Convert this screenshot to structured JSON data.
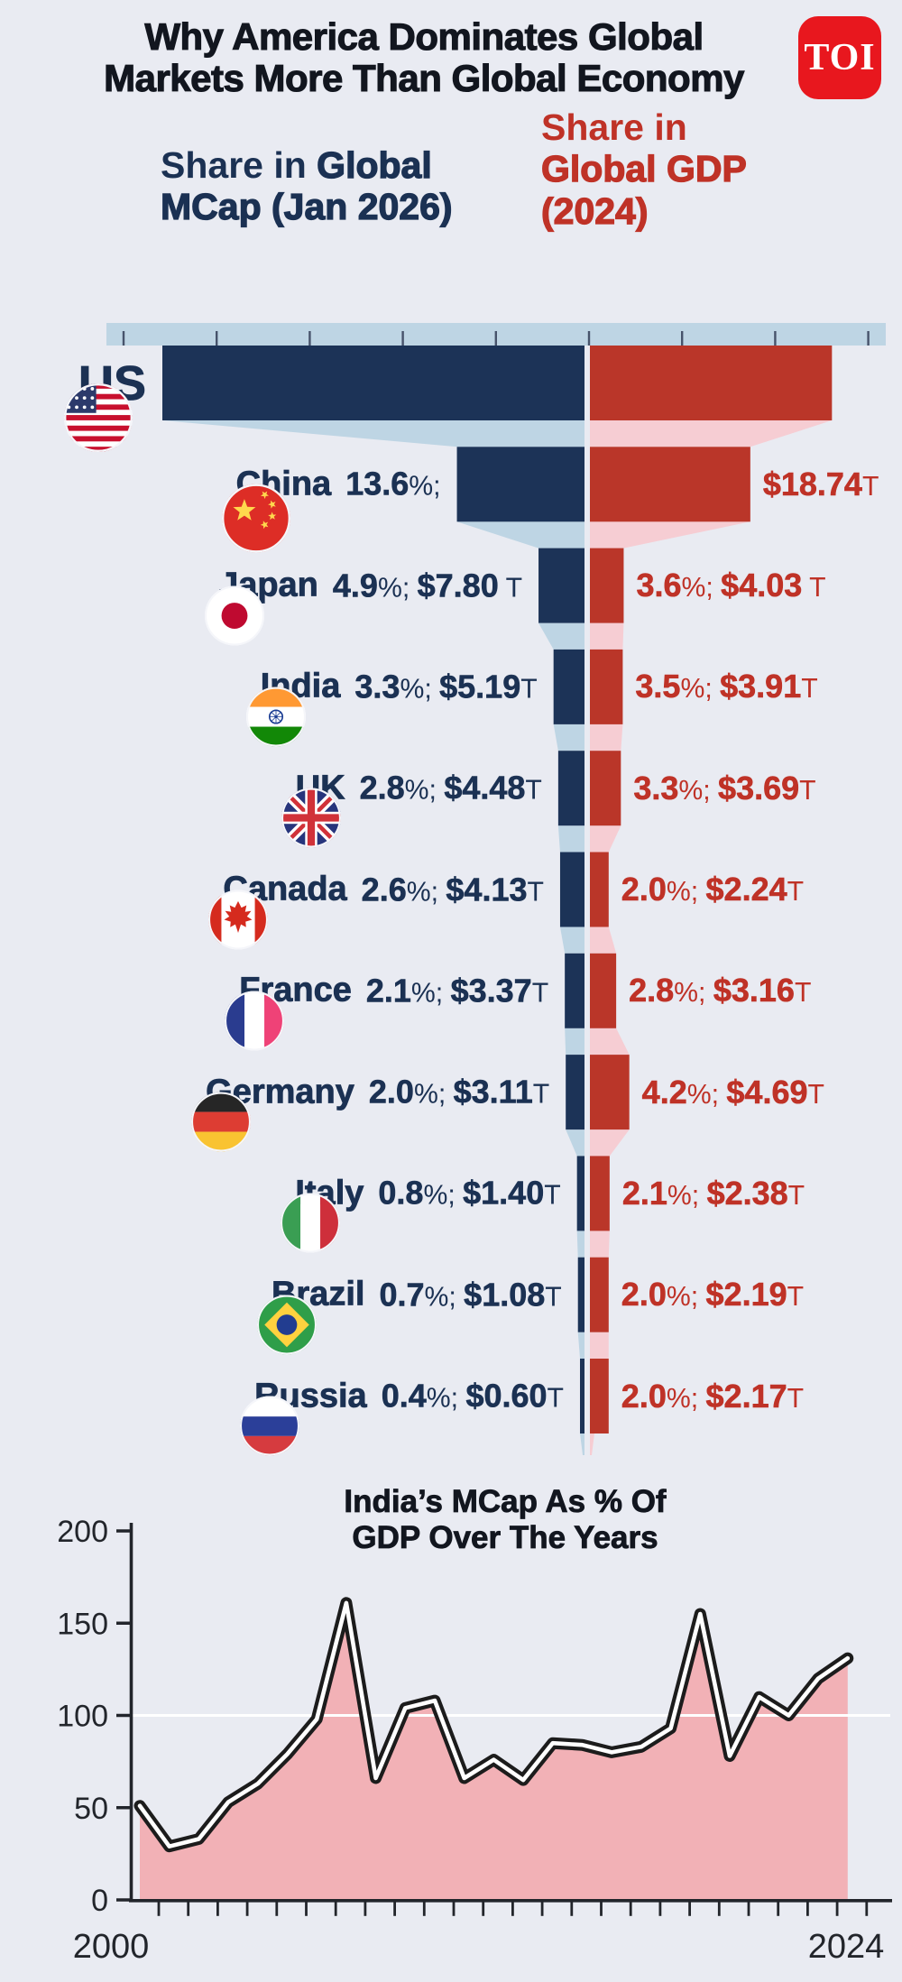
{
  "title": {
    "line1": "Why America Dominates Global",
    "line2": "Markets More Than Global Economy"
  },
  "logo": {
    "text": "TOI"
  },
  "col_headers": {
    "mcap": {
      "prefix": "Share in ",
      "bold": "Global",
      "line2": "MCap (Jan 2026)"
    },
    "gdp": {
      "line1": "Share in",
      "line2": "Global GDP",
      "line3": "(2024)"
    }
  },
  "colors": {
    "page_bg": "#e9ebf2",
    "title_dark": "#12161f",
    "logo_red": "#e8171e",
    "navy_bar": "#1c3357",
    "red_bar": "#ba3629",
    "light_blue": "#bed5e4",
    "light_pink": "#f6cdd3",
    "text_navy": "#1b3153",
    "text_red": "#bf3227",
    "area_pink": "#f2b1b6",
    "line_black": "#1c1c1c",
    "line_white": "#ffffff",
    "axis_dark": "#22252b",
    "ruler_tick": "#47536b",
    "gridline_white": "#ffffff"
  },
  "chart_data": [
    {
      "type": "bar",
      "subtype": "mirrored-funnel-comparison",
      "title": "Share in Global MCap (Jan 2026) vs Share in Global GDP (2024)",
      "unit": "% of world total; $ trillion",
      "rows": [
        {
          "country": "US",
          "flag": "us",
          "mcap_text": "",
          "gdp_text": "",
          "mcap_bar_pct": 45.0,
          "gdp_bar_pct": 25.8
        },
        {
          "country": "China",
          "flag": "cn",
          "mcap_text": "13.6%;",
          "gdp_text": "$18.74T",
          "mcap_bar_pct": 13.6,
          "gdp_bar_pct": 17.1
        },
        {
          "country": "Japan",
          "flag": "jp",
          "mcap_text": "4.9%; $7.80 T",
          "gdp_text": "3.6%; $4.03 T",
          "mcap_bar_pct": 4.9,
          "gdp_bar_pct": 3.6
        },
        {
          "country": "India",
          "flag": "in",
          "mcap_text": "3.3%; $5.19T",
          "gdp_text": "3.5%; $3.91T",
          "mcap_bar_pct": 3.3,
          "gdp_bar_pct": 3.5
        },
        {
          "country": "UK",
          "flag": "gb",
          "mcap_text": "2.8%; $4.48T",
          "gdp_text": "3.3%; $3.69T",
          "mcap_bar_pct": 2.8,
          "gdp_bar_pct": 3.3
        },
        {
          "country": "Canada",
          "flag": "ca",
          "mcap_text": "2.6%; $4.13T",
          "gdp_text": "2.0%; $2.24T",
          "mcap_bar_pct": 2.6,
          "gdp_bar_pct": 2.0
        },
        {
          "country": "France",
          "flag": "fr",
          "mcap_text": "2.1%; $3.37T",
          "gdp_text": "2.8%; $3.16T",
          "mcap_bar_pct": 2.1,
          "gdp_bar_pct": 2.8
        },
        {
          "country": "Germany",
          "flag": "de",
          "mcap_text": "2.0%; $3.11T",
          "gdp_text": "4.2%; $4.69T",
          "mcap_bar_pct": 2.0,
          "gdp_bar_pct": 4.2
        },
        {
          "country": "Italy",
          "flag": "it",
          "mcap_text": "0.8%; $1.40T",
          "gdp_text": "2.1%; $2.38T",
          "mcap_bar_pct": 0.8,
          "gdp_bar_pct": 2.1
        },
        {
          "country": "Brazil",
          "flag": "br",
          "mcap_text": "0.7%; $1.08T",
          "gdp_text": "2.0%; $2.19T",
          "mcap_bar_pct": 0.7,
          "gdp_bar_pct": 2.0
        },
        {
          "country": "Russia",
          "flag": "ru",
          "mcap_text": "0.4%; $0.60T",
          "gdp_text": "2.0%; $2.17T",
          "mcap_bar_pct": 0.4,
          "gdp_bar_pct": 2.0
        }
      ]
    },
    {
      "type": "area",
      "title_line1": "India’s MCap As % Of",
      "title_line2": "GDP Over The Years",
      "x_start": 2000,
      "x_end": 2024,
      "x_labels": [
        "2000",
        "2024"
      ],
      "y_ticks": [
        0,
        50,
        100,
        150,
        200
      ],
      "ylim": [
        0,
        200
      ],
      "gridline_at": 100,
      "values": [
        51,
        29,
        33,
        53,
        63,
        79,
        98,
        161,
        66,
        104,
        108,
        66,
        76,
        65,
        85,
        84,
        80,
        83,
        93,
        155,
        78,
        110,
        100,
        120,
        131
      ]
    }
  ]
}
